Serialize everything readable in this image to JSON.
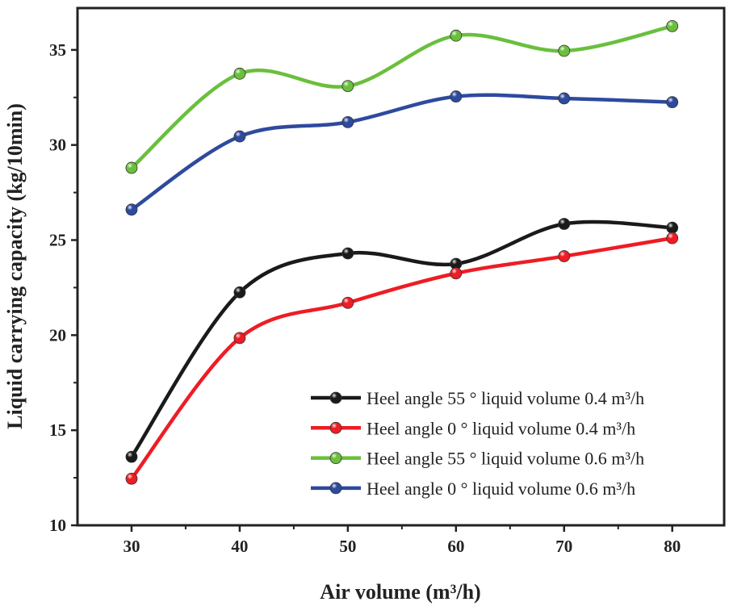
{
  "chart_data": {
    "type": "line",
    "title": "",
    "xlabel": "Air volume (m³/h)",
    "ylabel": "Liquid carrying capacity (kg/10min)",
    "x": [
      30,
      40,
      50,
      60,
      70,
      80
    ],
    "xlim": [
      25,
      84.8
    ],
    "ylim": [
      10,
      37.2
    ],
    "xticks": [
      30,
      40,
      50,
      60,
      70,
      80
    ],
    "yticks": [
      10,
      15,
      20,
      25,
      30,
      35
    ],
    "grid": false,
    "smooth": true,
    "legend_position": "bottom-right",
    "series": [
      {
        "name": "Heel angle 55 ° liquid volume 0.4 m³/h",
        "color": "#1a1a1a",
        "values": [
          13.6,
          22.25,
          24.3,
          23.75,
          25.85,
          25.65
        ]
      },
      {
        "name": "Heel angle 0 ° liquid volume 0.4 m³/h",
        "color": "#ee1c24",
        "values": [
          12.45,
          19.85,
          21.7,
          23.25,
          24.15,
          25.1
        ]
      },
      {
        "name": "Heel angle 55 ° liquid volume 0.6 m³/h",
        "color": "#6abf3c",
        "values": [
          28.8,
          33.75,
          33.1,
          35.75,
          34.95,
          36.25
        ]
      },
      {
        "name": "Heel angle 0 ° liquid volume 0.6 m³/h",
        "color": "#2e4a9e",
        "values": [
          26.6,
          30.45,
          31.2,
          32.55,
          32.45,
          32.25
        ]
      }
    ]
  }
}
